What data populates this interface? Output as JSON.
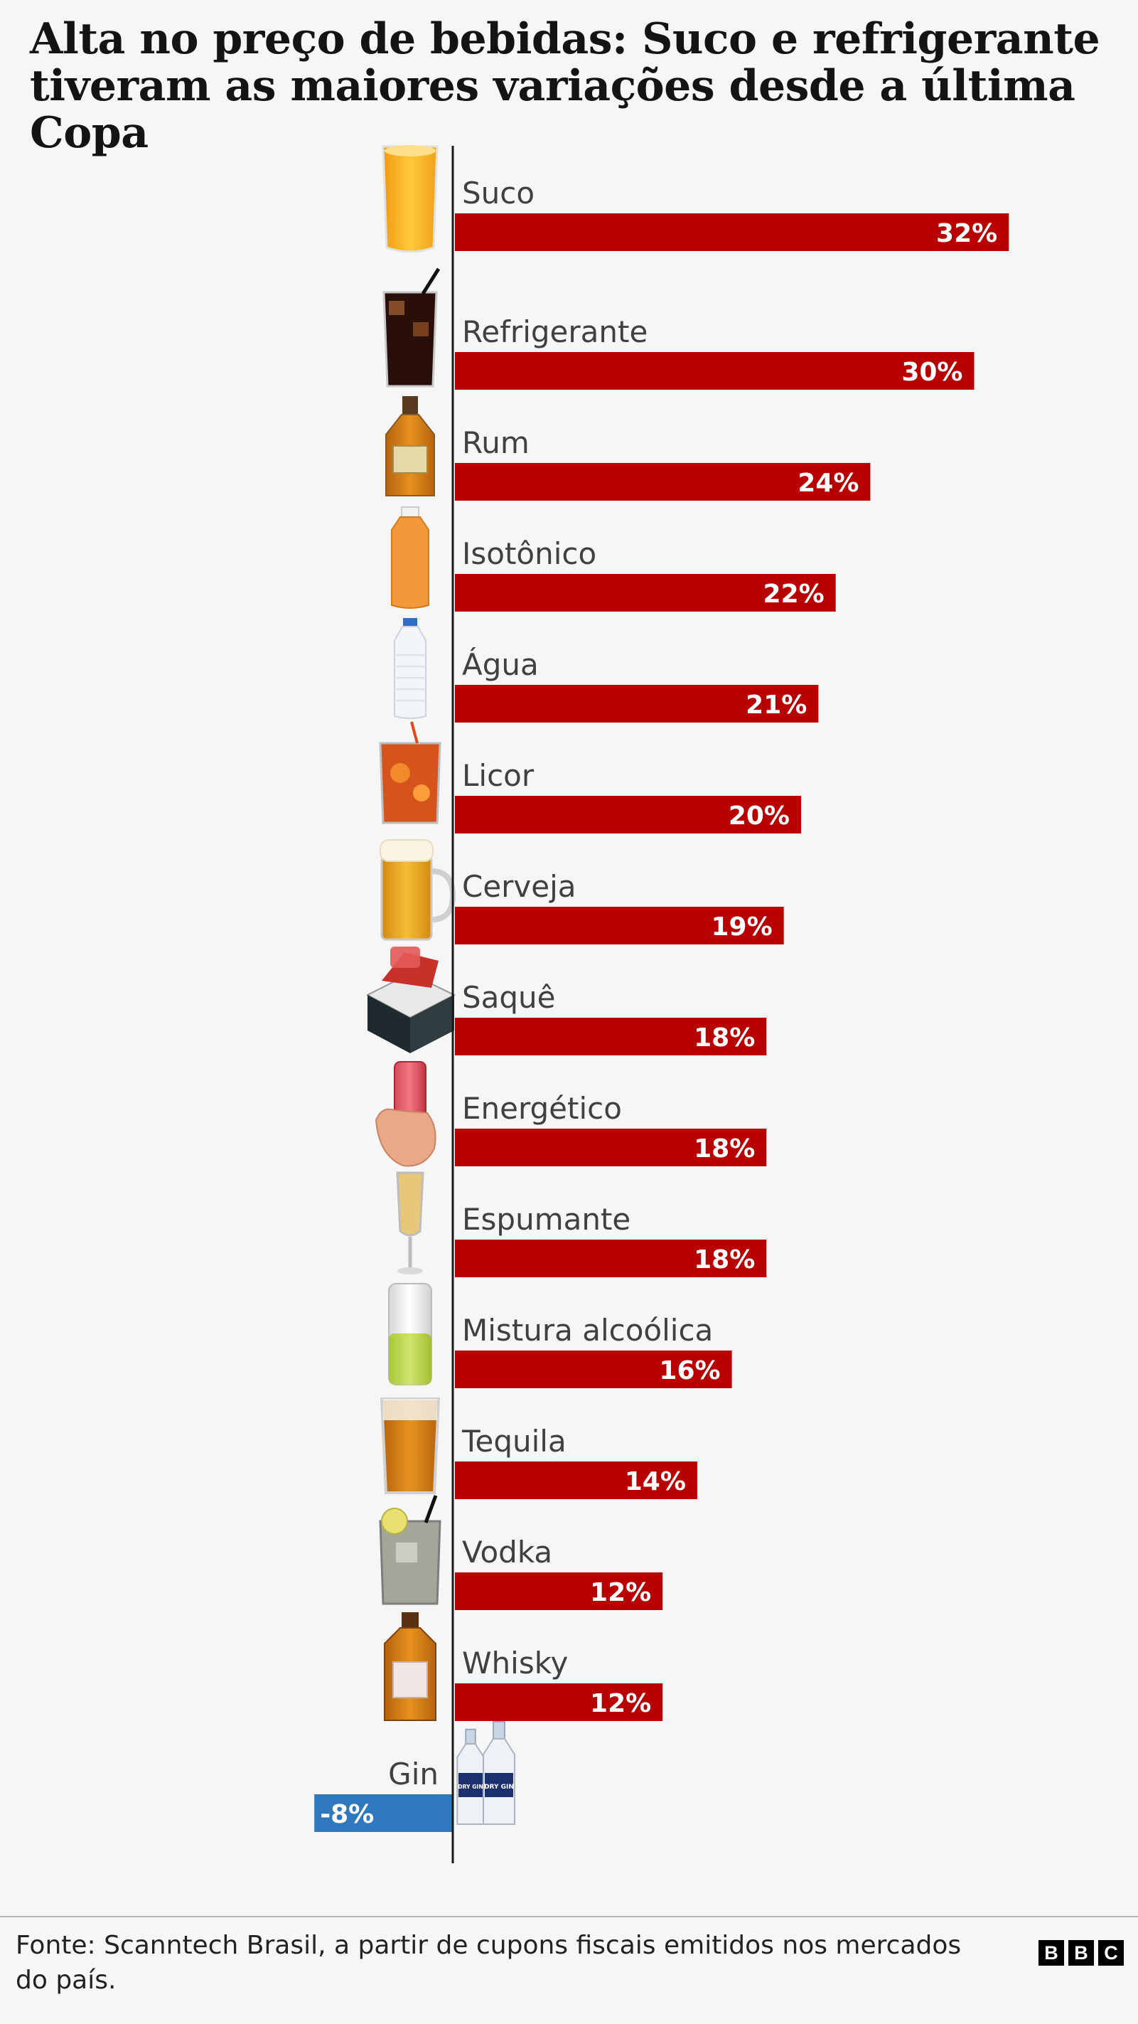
{
  "title": "Alta no preço de bebidas: Suco e refrigerante tiveram as maiores variações desde a última Copa",
  "source": "Fonte: Scanntech Brasil, a partir de cupons fiscais emitidos nos mercados do país.",
  "logo": [
    "B",
    "B",
    "C"
  ],
  "colors": {
    "positive": "#b80000",
    "negative": "#2f78be",
    "axis": "#1a1a1a"
  },
  "chart_data": {
    "type": "bar",
    "orientation": "horizontal",
    "categories": [
      "Suco",
      "Refrigerante",
      "Rum",
      "Isotônico",
      "Água",
      "Licor",
      "Cerveja",
      "Saquê",
      "Energético",
      "Espumante",
      "Mistura alcoólica",
      "Tequila",
      "Vodka",
      "Whisky",
      "Gin"
    ],
    "values": [
      32,
      30,
      24,
      22,
      21,
      20,
      19,
      18,
      18,
      18,
      16,
      14,
      12,
      12,
      -8
    ],
    "value_labels": [
      "32%",
      "30%",
      "24%",
      "22%",
      "21%",
      "20%",
      "19%",
      "18%",
      "18%",
      "18%",
      "16%",
      "14%",
      "12%",
      "12%",
      "-8%"
    ],
    "icons": [
      "juice-glass-icon",
      "soda-glass-icon",
      "rum-bottle-icon",
      "isotonic-bottle-icon",
      "water-bottle-icon",
      "liqueur-glass-icon",
      "beer-mug-icon",
      "sake-box-icon",
      "energy-drink-can-icon",
      "sparkling-wine-flute-icon",
      "alcoholic-mix-can-icon",
      "tequila-shot-icon",
      "vodka-glass-icon",
      "whisky-bottle-icon",
      "gin-bottles-icon"
    ],
    "gin_label_text": "DRY GIN",
    "xlabel": "",
    "ylabel": "",
    "grid": false,
    "legend": "none"
  }
}
